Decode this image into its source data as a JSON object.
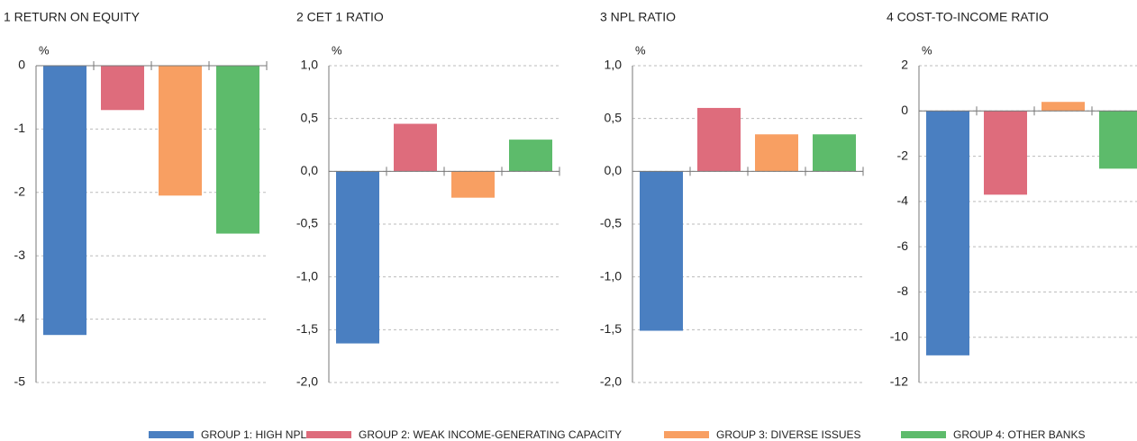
{
  "legend": [
    {
      "name": "GROUP 1: HIGH NPLs",
      "color": "#4a7fc1"
    },
    {
      "name": "GROUP 2: WEAK INCOME-GENERATING CAPACITY",
      "color": "#de6c7c"
    },
    {
      "name": "GROUP 3: DIVERSE ISSUES",
      "color": "#f89f62"
    },
    {
      "name": "GROUP 4: OTHER BANKS",
      "color": "#5dbb6b"
    }
  ],
  "chart_data": [
    {
      "type": "bar",
      "title": "1  RETURN ON EQUITY",
      "unit": "%",
      "values": [
        -4.25,
        -0.7,
        -2.05,
        -2.65
      ],
      "ylim": [
        -5,
        0
      ],
      "yticks": [
        0,
        -1,
        -2,
        -3,
        -4,
        -5
      ],
      "grid": true
    },
    {
      "type": "bar",
      "title": "2  CET 1 RATIO",
      "unit": "%",
      "values": [
        -1.63,
        0.45,
        -0.25,
        0.3
      ],
      "ylim": [
        -2,
        1
      ],
      "yticks": [
        {
          "value": 1,
          "label": "1,0"
        },
        {
          "value": 0.5,
          "label": "0,5"
        },
        {
          "value": 0,
          "label": "0,0"
        },
        {
          "value": -0.5,
          "label": "-0,5"
        },
        {
          "value": -1,
          "label": "-1,0"
        },
        {
          "value": -1.5,
          "label": "-1,5"
        },
        {
          "value": -2,
          "label": "-2,0"
        }
      ],
      "grid": true
    },
    {
      "type": "bar",
      "title": "3  NPL RATIO",
      "unit": "%",
      "values": [
        -1.51,
        0.6,
        0.35,
        0.35
      ],
      "ylim": [
        -2,
        1
      ],
      "yticks": [
        {
          "value": 1,
          "label": "1,0"
        },
        {
          "value": 0.5,
          "label": "0,5"
        },
        {
          "value": 0,
          "label": "0,0"
        },
        {
          "value": -0.5,
          "label": "-0,5"
        },
        {
          "value": -1,
          "label": "-1,0"
        },
        {
          "value": -1.5,
          "label": "-1,5"
        },
        {
          "value": -2,
          "label": "-2,0"
        }
      ],
      "grid": true
    },
    {
      "type": "bar",
      "title": "4  COST-TO-INCOME RATIO",
      "unit": "%",
      "values": [
        -10.8,
        -3.7,
        0.4,
        -2.55
      ],
      "ylim": [
        -12,
        2
      ],
      "yticks": [
        2,
        0,
        -2,
        -4,
        -6,
        -8,
        -10,
        -12
      ],
      "grid": true
    }
  ]
}
